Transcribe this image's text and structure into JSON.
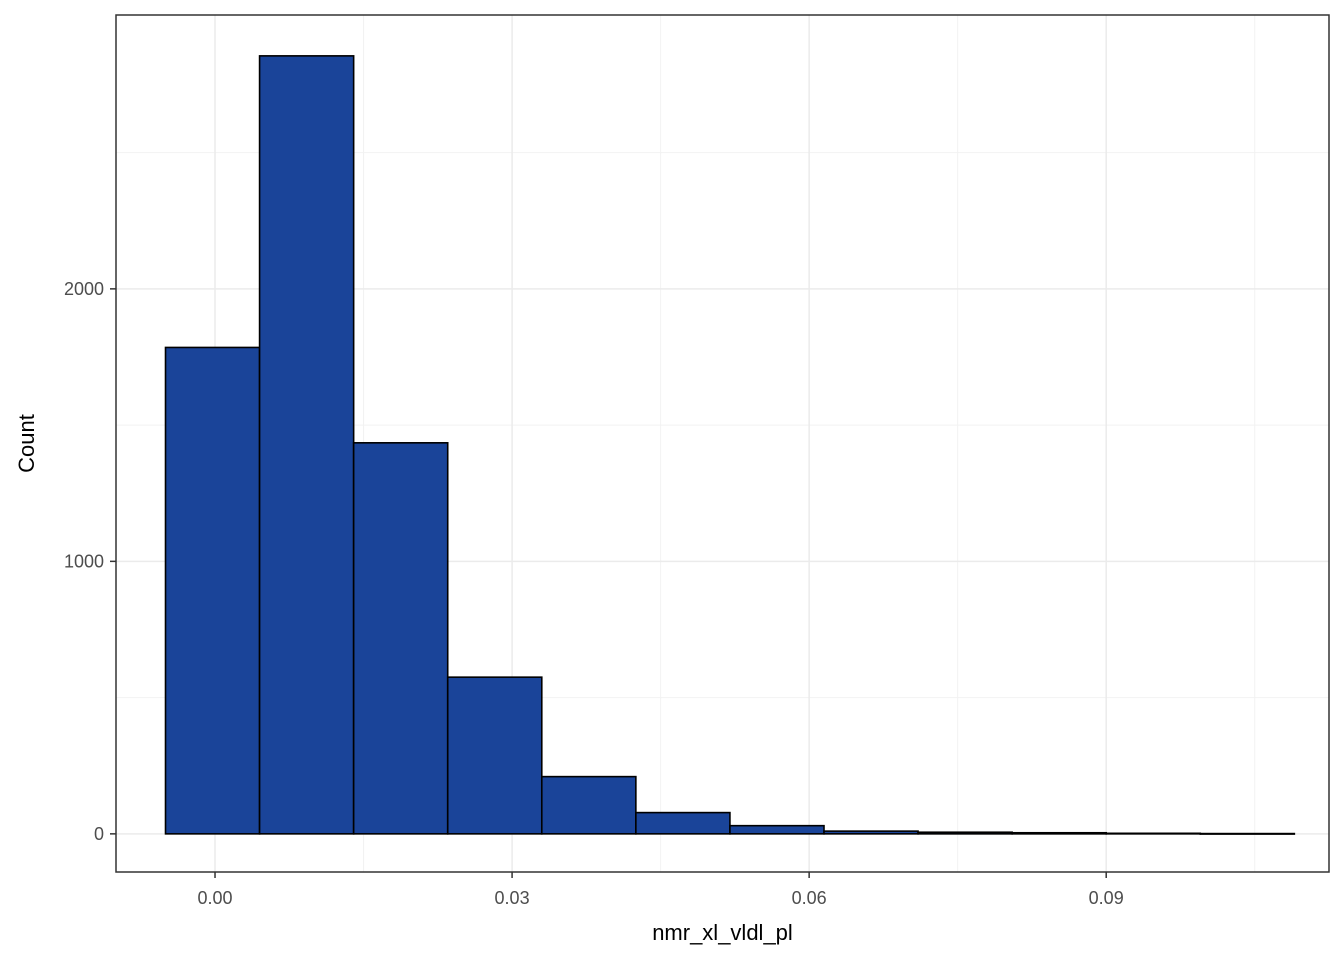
{
  "chart_data": {
    "type": "bar",
    "subtype": "histogram",
    "title": "",
    "xlabel": "nmr_xl_vldl_pl",
    "ylabel": "Count",
    "bins": [
      {
        "x_start": -0.005,
        "x_end": 0.0045,
        "count": 1785
      },
      {
        "x_start": 0.0045,
        "x_end": 0.014,
        "count": 2855
      },
      {
        "x_start": 0.014,
        "x_end": 0.0235,
        "count": 1435
      },
      {
        "x_start": 0.0235,
        "x_end": 0.033,
        "count": 575
      },
      {
        "x_start": 0.033,
        "x_end": 0.0425,
        "count": 210
      },
      {
        "x_start": 0.0425,
        "x_end": 0.052,
        "count": 78
      },
      {
        "x_start": 0.052,
        "x_end": 0.0615,
        "count": 30
      },
      {
        "x_start": 0.0615,
        "x_end": 0.071,
        "count": 10
      },
      {
        "x_start": 0.071,
        "x_end": 0.0805,
        "count": 6
      },
      {
        "x_start": 0.0805,
        "x_end": 0.09,
        "count": 4
      },
      {
        "x_start": 0.09,
        "x_end": 0.0995,
        "count": 2
      },
      {
        "x_start": 0.0995,
        "x_end": 0.109,
        "count": 1
      }
    ],
    "x_ticks": [
      "0.00",
      "0.03",
      "0.06",
      "0.09"
    ],
    "x_tick_values": [
      0.0,
      0.03,
      0.06,
      0.09
    ],
    "y_ticks": [
      "0",
      "1000",
      "2000"
    ],
    "y_tick_values": [
      0,
      1000,
      2000
    ],
    "xlim": [
      -0.01,
      0.1125
    ],
    "ylim": [
      -140,
      3005
    ],
    "grid": true,
    "legend": "none",
    "colors": {
      "bar_fill": "#1a4499",
      "bar_stroke": "#000000",
      "grid_major": "#ebebeb",
      "grid_minor": "#f2f2f2",
      "panel_border": "#333333"
    }
  }
}
